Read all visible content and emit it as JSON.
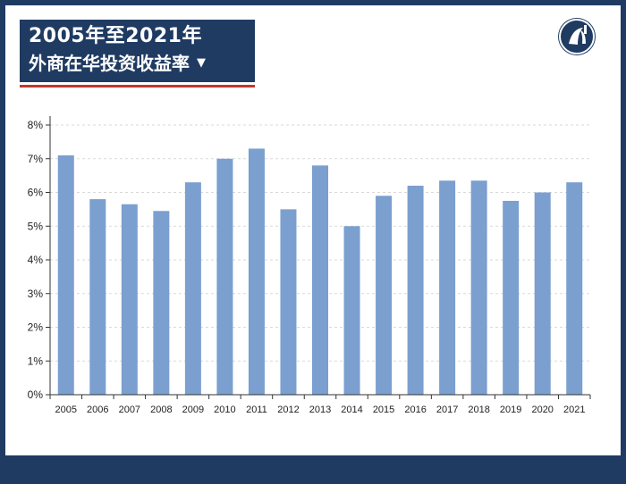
{
  "header": {
    "title_line1": "2005年至2021年",
    "title_line2": "外商在华投资收益率",
    "caret": "▼"
  },
  "colors": {
    "navy": "#1f3b62",
    "bar": "#7b9fcf",
    "accent_red": "#c0392b"
  },
  "logo_icon": "brand-logo-icon",
  "chart_data": {
    "type": "bar",
    "title": "外商在华投资收益率",
    "categories": [
      "2005",
      "2006",
      "2007",
      "2008",
      "2009",
      "2010",
      "2011",
      "2012",
      "2013",
      "2014",
      "2015",
      "2016",
      "2017",
      "2018",
      "2019",
      "2020",
      "2021"
    ],
    "values": [
      7.1,
      5.8,
      5.65,
      5.45,
      6.3,
      7.0,
      7.3,
      5.5,
      6.8,
      5.0,
      5.9,
      6.2,
      6.35,
      6.35,
      5.75,
      6.0,
      6.3
    ],
    "y_ticks": [
      "0%",
      "1%",
      "2%",
      "3%",
      "4%",
      "5%",
      "6%",
      "7%",
      "8%"
    ],
    "ylim": [
      0,
      8
    ],
    "y_unit": "%",
    "grid": true,
    "xlabel": "",
    "ylabel": ""
  }
}
